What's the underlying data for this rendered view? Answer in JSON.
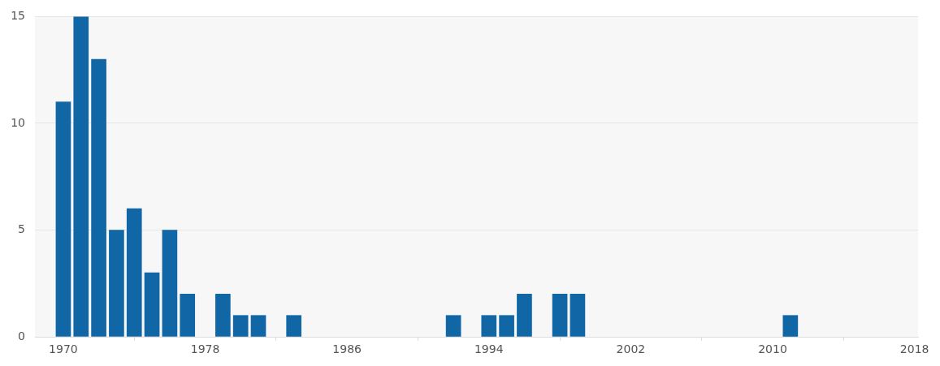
{
  "chart_data": {
    "type": "bar",
    "x": [
      1970,
      1971,
      1972,
      1973,
      1974,
      1975,
      1976,
      1977,
      1979,
      1980,
      1981,
      1983,
      1992,
      1994,
      1995,
      1996,
      1998,
      1999,
      2011
    ],
    "values": [
      11,
      15,
      13,
      5,
      6,
      3,
      5,
      2,
      2,
      1,
      1,
      1,
      1,
      1,
      1,
      2,
      2,
      2,
      1
    ],
    "color": "#1166a6",
    "xlim": [
      1968.4,
      2018.2
    ],
    "xticks": [
      1970,
      1978,
      1986,
      1994,
      2002,
      2010,
      2018
    ],
    "ylim": [
      0,
      15
    ],
    "yticks": [
      0,
      5,
      10,
      15
    ],
    "grid": "y",
    "legend": false
  }
}
